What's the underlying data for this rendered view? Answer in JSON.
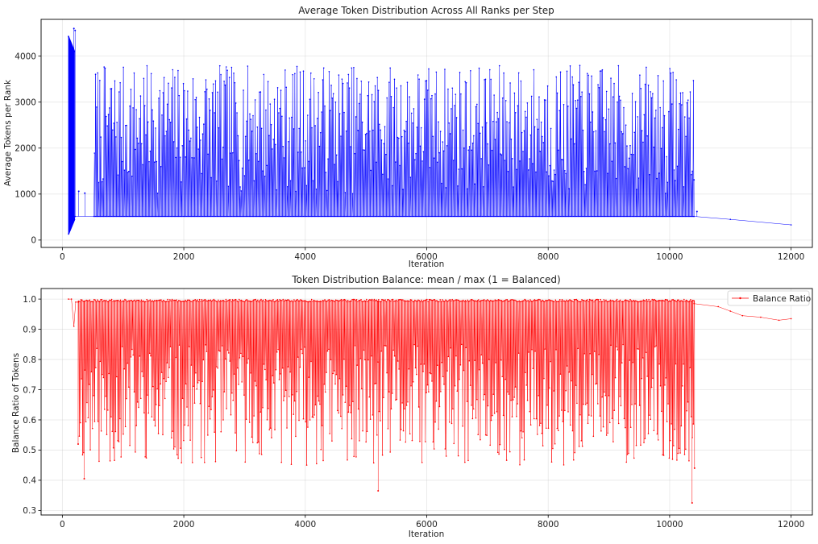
{
  "figure": {
    "background": "#ffffff"
  },
  "chart_data": [
    {
      "type": "line",
      "title": "Average Token Distribution Across All Ranks per Step",
      "xlabel": "Iteration",
      "ylabel": "Average Tokens per Rank",
      "xlim": [
        -350,
        12350
      ],
      "ylim": [
        -160,
        4800
      ],
      "xticks": [
        0,
        2000,
        4000,
        6000,
        8000,
        10000,
        12000
      ],
      "yticks": [
        0,
        1000,
        2000,
        3000,
        4000
      ],
      "grid": true,
      "legend": null,
      "series": [
        {
          "color": "#0000ff",
          "marker": "dot",
          "linewidth": 0.5,
          "baseline": 515,
          "segments": [
            {
              "kind": "initial_sawtooth",
              "x": [
                100,
                200
              ],
              "y_top": [
                4430,
                4100
              ],
              "y_bottom": [
                130,
                450
              ]
            },
            {
              "kind": "spikes",
              "x_range": [
                520,
                10400
              ],
              "count": 560,
              "y_range": [
                1000,
                3800
              ],
              "seed": 7
            },
            {
              "kind": "late_decay",
              "x": [
                10400,
                11000,
                12000
              ],
              "y": [
                515,
                450,
                330
              ]
            }
          ],
          "highlights": [
            {
              "x": 190,
              "y": 4600
            },
            {
              "x": 210,
              "y": 4560
            },
            {
              "x": 270,
              "y": 1060
            },
            {
              "x": 370,
              "y": 1020
            },
            {
              "x": 10400,
              "y": 1310
            },
            {
              "x": 10450,
              "y": 620
            }
          ]
        }
      ]
    },
    {
      "type": "line",
      "title": "Token Distribution Balance: mean / max (1 = Balanced)",
      "xlabel": "Iteration",
      "ylabel": "Balance Ratio of Tokens",
      "xlim": [
        -350,
        12350
      ],
      "ylim": [
        0.285,
        1.035
      ],
      "xticks": [
        0,
        2000,
        4000,
        6000,
        8000,
        10000,
        12000
      ],
      "yticks": [
        0.3,
        0.4,
        0.5,
        0.6,
        0.7,
        0.8,
        0.9,
        1.0
      ],
      "grid": true,
      "legend": {
        "position": "top-right",
        "entries": [
          "Balance Ratio"
        ]
      },
      "series": [
        {
          "name": "Balance Ratio",
          "color": "#ff0000",
          "marker": "dot",
          "linewidth": 0.5,
          "baseline": 0.995,
          "segments": [
            {
              "kind": "initial",
              "x": [
                100,
                150,
                190,
                220,
                260
              ],
              "y": [
                1.0,
                1.0,
                0.91,
                0.99,
                0.99
              ]
            },
            {
              "kind": "dips",
              "x_range": [
                270,
                10400
              ],
              "count": 560,
              "y_range": [
                0.45,
                0.85
              ],
              "seed": 11
            },
            {
              "kind": "late_decline",
              "x": [
                10400,
                10800,
                11000,
                11200,
                11500,
                11800,
                12000
              ],
              "y": [
                0.985,
                0.975,
                0.96,
                0.945,
                0.94,
                0.93,
                0.935
              ]
            }
          ],
          "highlights": [
            {
              "x": 260,
              "y": 0.52
            },
            {
              "x": 360,
              "y": 0.405
            },
            {
              "x": 5200,
              "y": 0.365
            },
            {
              "x": 10370,
              "y": 0.325
            },
            {
              "x": 10410,
              "y": 0.44
            }
          ]
        }
      ]
    }
  ]
}
